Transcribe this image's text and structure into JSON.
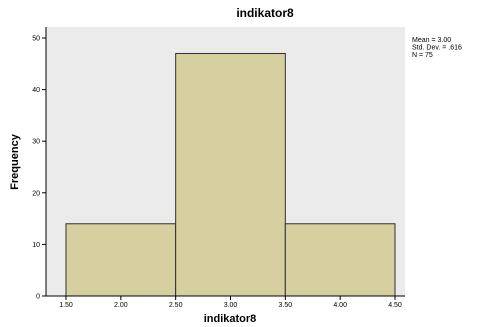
{
  "chart_data": {
    "type": "bar",
    "title": "indikator8",
    "xlabel": "indikator8",
    "ylabel": "Frequency",
    "bins": [
      {
        "start": 1.5,
        "end": 2.5,
        "count": 14
      },
      {
        "start": 2.5,
        "end": 3.5,
        "count": 47
      },
      {
        "start": 3.5,
        "end": 4.5,
        "count": 14
      }
    ],
    "xticks": [
      "1.50",
      "2.00",
      "2.50",
      "3.00",
      "3.50",
      "4.00",
      "4.50"
    ],
    "xtick_values": [
      1.5,
      2.0,
      2.5,
      3.0,
      3.5,
      4.0,
      4.5
    ],
    "yticks": [
      "0",
      "10",
      "20",
      "30",
      "40",
      "50"
    ],
    "ytick_values": [
      0,
      10,
      20,
      30,
      40,
      50
    ],
    "xlim": [
      1.5,
      4.5
    ],
    "ylim": [
      0,
      50
    ],
    "grid": false,
    "stats": [
      "Mean = 3.00",
      "Std. Dev. = .616",
      "N = 75"
    ],
    "colors": {
      "plot_background": "#ebebeb",
      "bar_fill": "#d6d0a0",
      "bar_stroke": "#303030"
    }
  }
}
